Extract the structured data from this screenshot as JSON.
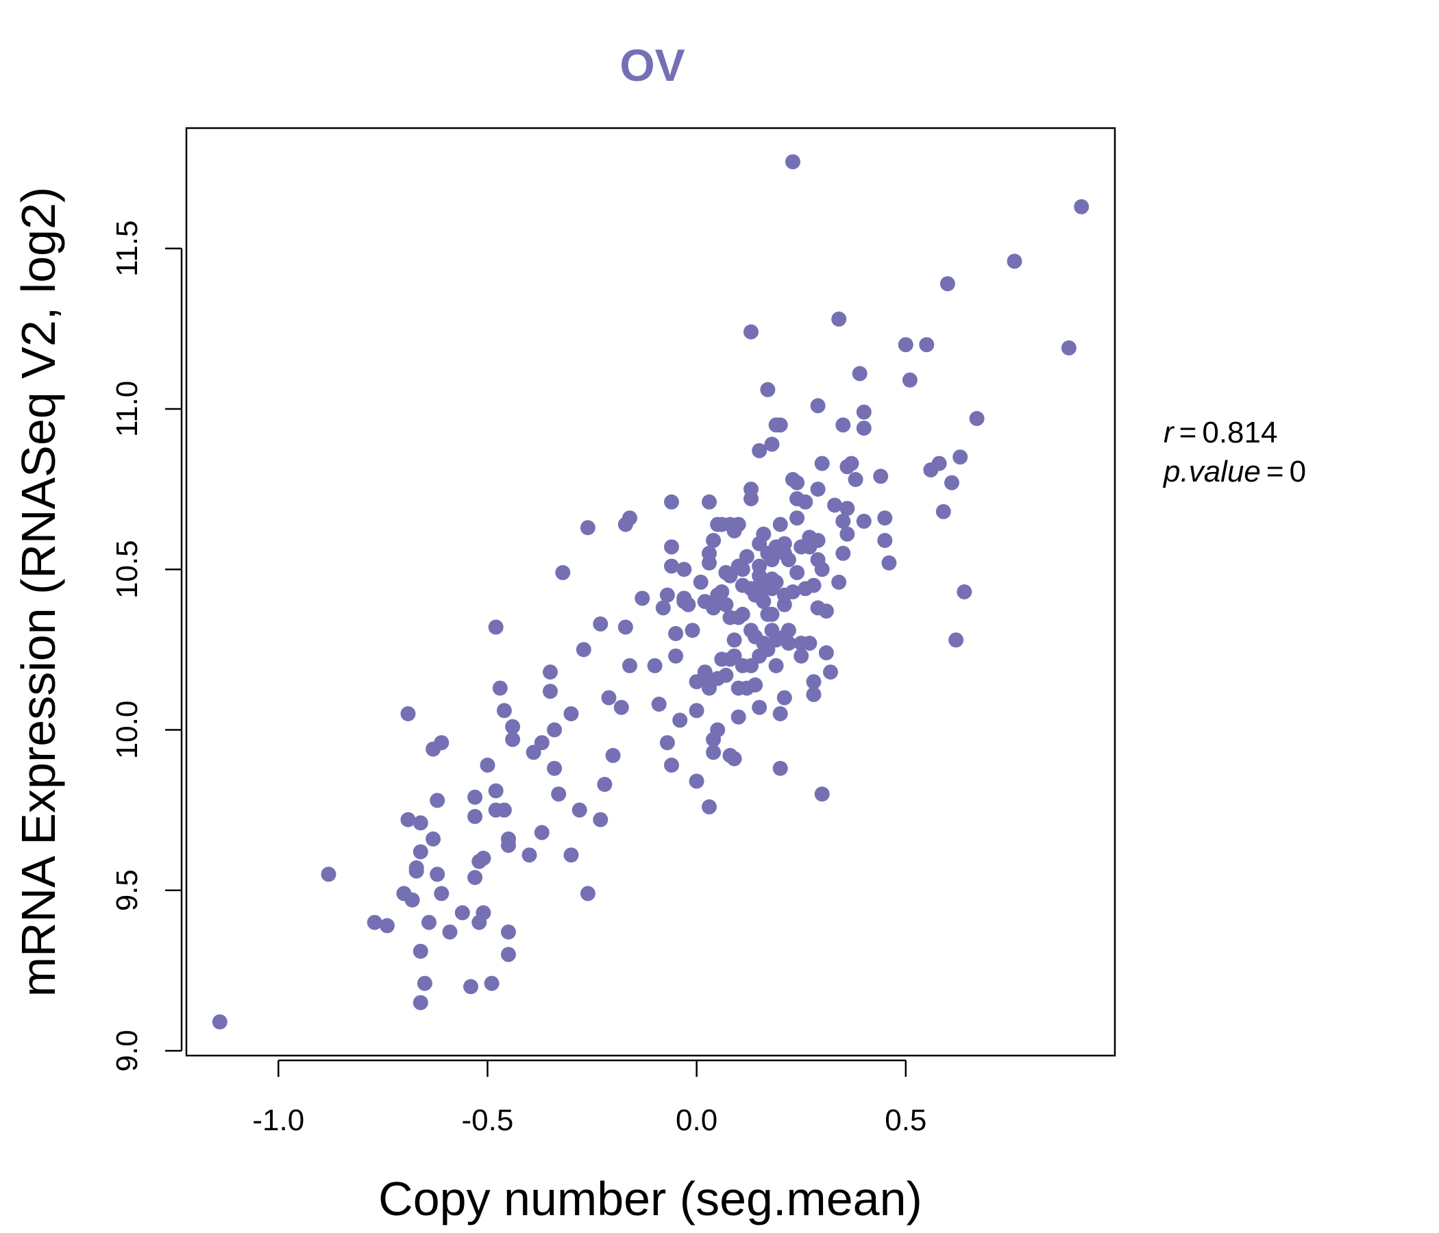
{
  "chart_data": {
    "type": "scatter",
    "title": "OV",
    "xlabel": "Copy number (seg.mean)",
    "ylabel": "mRNA Expression (RNASeq V2, log2)",
    "xlim": [
      -1.22,
      1.0
    ],
    "ylim": [
      8.985,
      11.875
    ],
    "xticks": [
      -1.0,
      -0.5,
      0.0,
      0.5
    ],
    "xtick_labels": [
      "-1.0",
      "-0.5",
      "0.0",
      "0.5"
    ],
    "yticks": [
      9.0,
      9.5,
      10.0,
      10.5,
      11.0,
      11.5
    ],
    "ytick_labels": [
      "9.0",
      "9.5",
      "10.0",
      "10.5",
      "11.0",
      "11.5"
    ],
    "point_color": "#7570b3",
    "stats": {
      "r_label": "r",
      "r_value": "0.814",
      "p_label": "p.value",
      "p_value": "0"
    },
    "points": [
      [
        -1.14,
        9.09
      ],
      [
        -0.88,
        9.55
      ],
      [
        -0.77,
        9.4
      ],
      [
        -0.74,
        9.39
      ],
      [
        -0.7,
        9.49
      ],
      [
        -0.69,
        10.05
      ],
      [
        -0.69,
        9.72
      ],
      [
        -0.68,
        9.47
      ],
      [
        -0.67,
        9.56
      ],
      [
        -0.67,
        9.57
      ],
      [
        -0.66,
        9.62
      ],
      [
        -0.66,
        9.71
      ],
      [
        -0.66,
        9.31
      ],
      [
        -0.66,
        9.15
      ],
      [
        -0.65,
        9.21
      ],
      [
        -0.64,
        9.4
      ],
      [
        -0.63,
        9.94
      ],
      [
        -0.63,
        9.66
      ],
      [
        -0.62,
        9.55
      ],
      [
        -0.62,
        9.78
      ],
      [
        -0.61,
        9.96
      ],
      [
        -0.61,
        9.49
      ],
      [
        -0.59,
        9.37
      ],
      [
        -0.56,
        9.43
      ],
      [
        -0.54,
        9.2
      ],
      [
        -0.53,
        9.79
      ],
      [
        -0.53,
        9.73
      ],
      [
        -0.53,
        9.54
      ],
      [
        -0.52,
        9.59
      ],
      [
        -0.52,
        9.4
      ],
      [
        -0.51,
        9.43
      ],
      [
        -0.51,
        9.6
      ],
      [
        -0.5,
        9.89
      ],
      [
        -0.49,
        9.21
      ],
      [
        -0.48,
        9.81
      ],
      [
        -0.48,
        9.75
      ],
      [
        -0.48,
        10.32
      ],
      [
        -0.47,
        10.13
      ],
      [
        -0.46,
        9.75
      ],
      [
        -0.46,
        10.06
      ],
      [
        -0.45,
        9.66
      ],
      [
        -0.45,
        9.64
      ],
      [
        -0.45,
        9.3
      ],
      [
        -0.45,
        9.37
      ],
      [
        -0.44,
        9.97
      ],
      [
        -0.44,
        10.01
      ],
      [
        -0.4,
        9.61
      ],
      [
        -0.39,
        9.93
      ],
      [
        -0.37,
        9.68
      ],
      [
        -0.37,
        9.96
      ],
      [
        -0.35,
        10.12
      ],
      [
        -0.35,
        10.18
      ],
      [
        -0.34,
        9.88
      ],
      [
        -0.34,
        10.0
      ],
      [
        -0.33,
        9.8
      ],
      [
        -0.32,
        10.49
      ],
      [
        -0.3,
        9.61
      ],
      [
        -0.3,
        10.05
      ],
      [
        -0.28,
        9.75
      ],
      [
        -0.27,
        10.25
      ],
      [
        -0.26,
        10.63
      ],
      [
        -0.26,
        9.49
      ],
      [
        -0.23,
        9.72
      ],
      [
        -0.23,
        10.33
      ],
      [
        -0.22,
        9.83
      ],
      [
        -0.21,
        10.1
      ],
      [
        -0.2,
        9.92
      ],
      [
        -0.18,
        10.07
      ],
      [
        -0.17,
        10.64
      ],
      [
        -0.17,
        10.32
      ],
      [
        -0.16,
        10.66
      ],
      [
        -0.16,
        10.2
      ],
      [
        -0.13,
        10.41
      ],
      [
        -0.1,
        10.2
      ],
      [
        -0.09,
        10.08
      ],
      [
        -0.08,
        10.38
      ],
      [
        -0.07,
        9.96
      ],
      [
        -0.07,
        10.42
      ],
      [
        -0.06,
        10.71
      ],
      [
        -0.06,
        10.57
      ],
      [
        -0.06,
        10.51
      ],
      [
        -0.06,
        9.89
      ],
      [
        -0.05,
        10.3
      ],
      [
        -0.05,
        10.23
      ],
      [
        -0.04,
        10.03
      ],
      [
        -0.03,
        10.4
      ],
      [
        -0.03,
        10.5
      ],
      [
        -0.03,
        10.41
      ],
      [
        -0.02,
        10.39
      ],
      [
        -0.01,
        10.31
      ],
      [
        0.0,
        10.15
      ],
      [
        0.0,
        10.06
      ],
      [
        0.0,
        9.84
      ],
      [
        0.01,
        10.46
      ],
      [
        0.02,
        10.4
      ],
      [
        0.02,
        10.18
      ],
      [
        0.02,
        10.16
      ],
      [
        0.03,
        9.76
      ],
      [
        0.03,
        10.52
      ],
      [
        0.03,
        10.55
      ],
      [
        0.03,
        10.71
      ],
      [
        0.03,
        10.13
      ],
      [
        0.04,
        9.93
      ],
      [
        0.04,
        9.97
      ],
      [
        0.04,
        10.59
      ],
      [
        0.04,
        10.38
      ],
      [
        0.05,
        10.64
      ],
      [
        0.05,
        10.42
      ],
      [
        0.05,
        10.16
      ],
      [
        0.05,
        10.0
      ],
      [
        0.06,
        10.22
      ],
      [
        0.06,
        10.43
      ],
      [
        0.06,
        10.64
      ],
      [
        0.07,
        10.39
      ],
      [
        0.07,
        10.49
      ],
      [
        0.07,
        10.17
      ],
      [
        0.08,
        10.64
      ],
      [
        0.08,
        10.48
      ],
      [
        0.08,
        10.35
      ],
      [
        0.08,
        10.22
      ],
      [
        0.08,
        9.92
      ],
      [
        0.09,
        10.28
      ],
      [
        0.09,
        10.23
      ],
      [
        0.09,
        10.62
      ],
      [
        0.09,
        9.91
      ],
      [
        0.1,
        10.04
      ],
      [
        0.1,
        10.35
      ],
      [
        0.1,
        10.51
      ],
      [
        0.1,
        10.64
      ],
      [
        0.1,
        10.13
      ],
      [
        0.11,
        10.45
      ],
      [
        0.11,
        10.5
      ],
      [
        0.11,
        10.2
      ],
      [
        0.11,
        10.36
      ],
      [
        0.12,
        10.13
      ],
      [
        0.12,
        10.54
      ],
      [
        0.13,
        10.44
      ],
      [
        0.13,
        10.31
      ],
      [
        0.13,
        10.72
      ],
      [
        0.13,
        10.75
      ],
      [
        0.13,
        10.2
      ],
      [
        0.13,
        11.24
      ],
      [
        0.14,
        10.14
      ],
      [
        0.14,
        10.29
      ],
      [
        0.14,
        10.42
      ],
      [
        0.15,
        10.48
      ],
      [
        0.15,
        10.51
      ],
      [
        0.15,
        10.58
      ],
      [
        0.15,
        10.45
      ],
      [
        0.15,
        10.23
      ],
      [
        0.15,
        10.07
      ],
      [
        0.15,
        10.87
      ],
      [
        0.16,
        10.44
      ],
      [
        0.16,
        10.27
      ],
      [
        0.16,
        10.4
      ],
      [
        0.16,
        10.61
      ],
      [
        0.17,
        10.36
      ],
      [
        0.17,
        10.25
      ],
      [
        0.17,
        11.06
      ],
      [
        0.17,
        10.55
      ],
      [
        0.18,
        10.53
      ],
      [
        0.18,
        10.44
      ],
      [
        0.18,
        10.47
      ],
      [
        0.18,
        10.89
      ],
      [
        0.18,
        10.31
      ],
      [
        0.18,
        10.36
      ],
      [
        0.19,
        10.95
      ],
      [
        0.19,
        10.2
      ],
      [
        0.19,
        10.46
      ],
      [
        0.19,
        10.28
      ],
      [
        0.19,
        10.57
      ],
      [
        0.2,
        10.05
      ],
      [
        0.2,
        10.95
      ],
      [
        0.2,
        9.88
      ],
      [
        0.2,
        10.64
      ],
      [
        0.21,
        10.29
      ],
      [
        0.21,
        10.42
      ],
      [
        0.21,
        10.55
      ],
      [
        0.21,
        10.39
      ],
      [
        0.21,
        10.1
      ],
      [
        0.21,
        10.58
      ],
      [
        0.22,
        10.27
      ],
      [
        0.22,
        10.53
      ],
      [
        0.22,
        10.31
      ],
      [
        0.23,
        11.77
      ],
      [
        0.23,
        10.78
      ],
      [
        0.23,
        10.43
      ],
      [
        0.24,
        10.72
      ],
      [
        0.24,
        10.77
      ],
      [
        0.24,
        10.49
      ],
      [
        0.24,
        10.66
      ],
      [
        0.25,
        10.27
      ],
      [
        0.25,
        10.57
      ],
      [
        0.25,
        10.23
      ],
      [
        0.26,
        10.71
      ],
      [
        0.26,
        10.44
      ],
      [
        0.27,
        10.6
      ],
      [
        0.27,
        10.27
      ],
      [
        0.27,
        10.57
      ],
      [
        0.28,
        10.45
      ],
      [
        0.28,
        10.15
      ],
      [
        0.28,
        10.11
      ],
      [
        0.29,
        10.38
      ],
      [
        0.29,
        11.01
      ],
      [
        0.29,
        10.53
      ],
      [
        0.29,
        10.59
      ],
      [
        0.29,
        10.75
      ],
      [
        0.3,
        10.5
      ],
      [
        0.3,
        9.8
      ],
      [
        0.3,
        10.83
      ],
      [
        0.31,
        10.37
      ],
      [
        0.31,
        10.24
      ],
      [
        0.32,
        10.18
      ],
      [
        0.33,
        10.7
      ],
      [
        0.34,
        10.46
      ],
      [
        0.34,
        11.28
      ],
      [
        0.35,
        10.65
      ],
      [
        0.35,
        10.55
      ],
      [
        0.35,
        10.95
      ],
      [
        0.36,
        10.82
      ],
      [
        0.36,
        10.61
      ],
      [
        0.36,
        10.69
      ],
      [
        0.37,
        10.83
      ],
      [
        0.38,
        10.78
      ],
      [
        0.39,
        11.11
      ],
      [
        0.4,
        10.65
      ],
      [
        0.4,
        10.99
      ],
      [
        0.4,
        10.94
      ],
      [
        0.44,
        10.79
      ],
      [
        0.45,
        10.66
      ],
      [
        0.45,
        10.59
      ],
      [
        0.46,
        10.52
      ],
      [
        0.5,
        11.2
      ],
      [
        0.51,
        11.09
      ],
      [
        0.55,
        11.2
      ],
      [
        0.56,
        10.81
      ],
      [
        0.58,
        10.83
      ],
      [
        0.59,
        10.68
      ],
      [
        0.6,
        11.39
      ],
      [
        0.61,
        10.77
      ],
      [
        0.62,
        10.28
      ],
      [
        0.63,
        10.85
      ],
      [
        0.64,
        10.43
      ],
      [
        0.67,
        10.97
      ],
      [
        0.76,
        11.46
      ],
      [
        0.89,
        11.19
      ],
      [
        0.92,
        11.63
      ]
    ]
  }
}
